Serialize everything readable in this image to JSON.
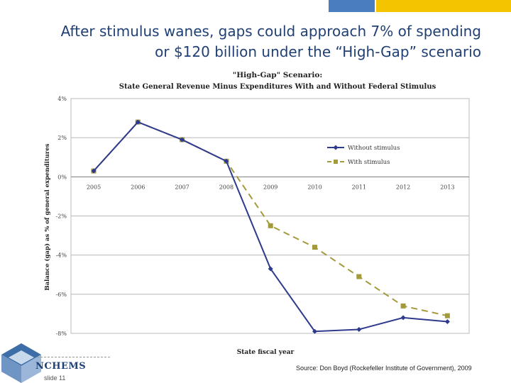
{
  "slide": {
    "title_line1": "After stimulus wanes, gaps could approach 7% of spending",
    "title_line2": "or $120 billion under the “High-Gap” scenario",
    "logo_text": "NCHEMS",
    "slide_number": "slide 11",
    "source": "Source: Don Boyd (Rockefeller Institute of Government), 2009",
    "accent_blue": "#4a7dbf",
    "accent_yellow": "#f5c400"
  },
  "chart_data": {
    "type": "line",
    "title_line1": "\"High-Gap\" Scenario:",
    "title_line2": "State General Revenue Minus Expenditures With and Without Federal Stimulus",
    "xlabel": "State fiscal year",
    "ylabel": "Balance (gap) as % of general expenditures",
    "categories": [
      "2005",
      "2006",
      "2007",
      "2008",
      "2009",
      "2010",
      "2011",
      "2012",
      "2013"
    ],
    "yticks": [
      "4%",
      "2%",
      "0%",
      "-2%",
      "-4%",
      "-6%",
      "-8%"
    ],
    "ylim": [
      -8,
      4
    ],
    "grid": true,
    "legend_position": "right",
    "series": [
      {
        "name": "Without stimulus",
        "color": "#2e3a8c",
        "marker": "diamond",
        "dash": false,
        "values": [
          0.3,
          2.8,
          1.9,
          0.8,
          -4.7,
          -7.9,
          -7.8,
          -7.2,
          -7.4
        ]
      },
      {
        "name": "With stimulus",
        "color": "#a39a3c",
        "marker": "square",
        "dash": true,
        "values": [
          0.3,
          2.8,
          1.9,
          0.8,
          -2.5,
          -3.6,
          -5.1,
          -6.6,
          -7.1
        ]
      }
    ]
  }
}
